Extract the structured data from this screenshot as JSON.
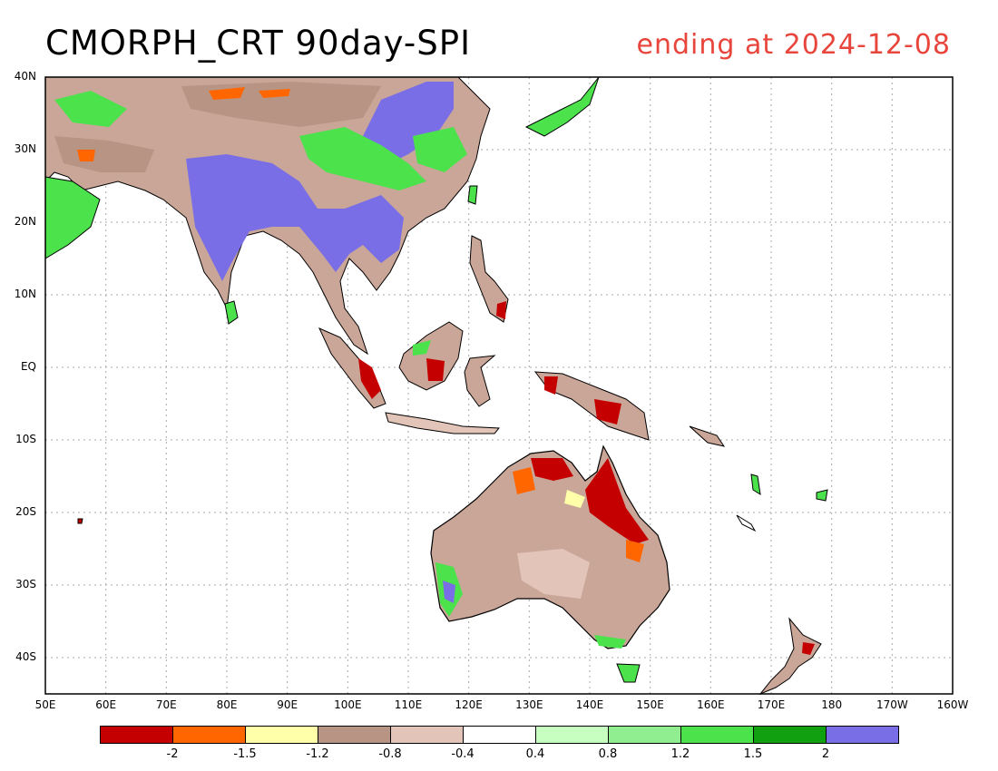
{
  "title": "CMORPH_CRT 90day-SPI",
  "subtitle": "ending at 2024-12-08",
  "colors": {
    "land_outline": "#000000",
    "grid": "#aaaaaa",
    "accent_red": "#e8453c"
  },
  "axes": {
    "lat_labels": [
      "40N",
      "30N",
      "20N",
      "10N",
      "EQ",
      "10S",
      "20S",
      "30S",
      "40S"
    ],
    "lon_labels": [
      "50E",
      "60E",
      "70E",
      "80E",
      "90E",
      "100E",
      "110E",
      "120E",
      "130E",
      "140E",
      "150E",
      "160E",
      "170E",
      "180",
      "170W",
      "160W"
    ],
    "lat_range": [
      -45,
      40
    ],
    "lon_range": [
      50,
      200
    ]
  },
  "legend": {
    "colors": [
      "#c40000",
      "#ff6600",
      "#ffffaa",
      "#b89484",
      "#e2c4b8",
      "#ffffff",
      "#c6ffc0",
      "#90ee90",
      "#4ce24c",
      "#10a010",
      "#7a6ee6"
    ],
    "tick_labels": [
      "-2",
      "-1.5",
      "-1.2",
      "-0.8",
      "-0.4",
      "0.4",
      "0.8",
      "1.2",
      "1.5",
      "2"
    ]
  }
}
